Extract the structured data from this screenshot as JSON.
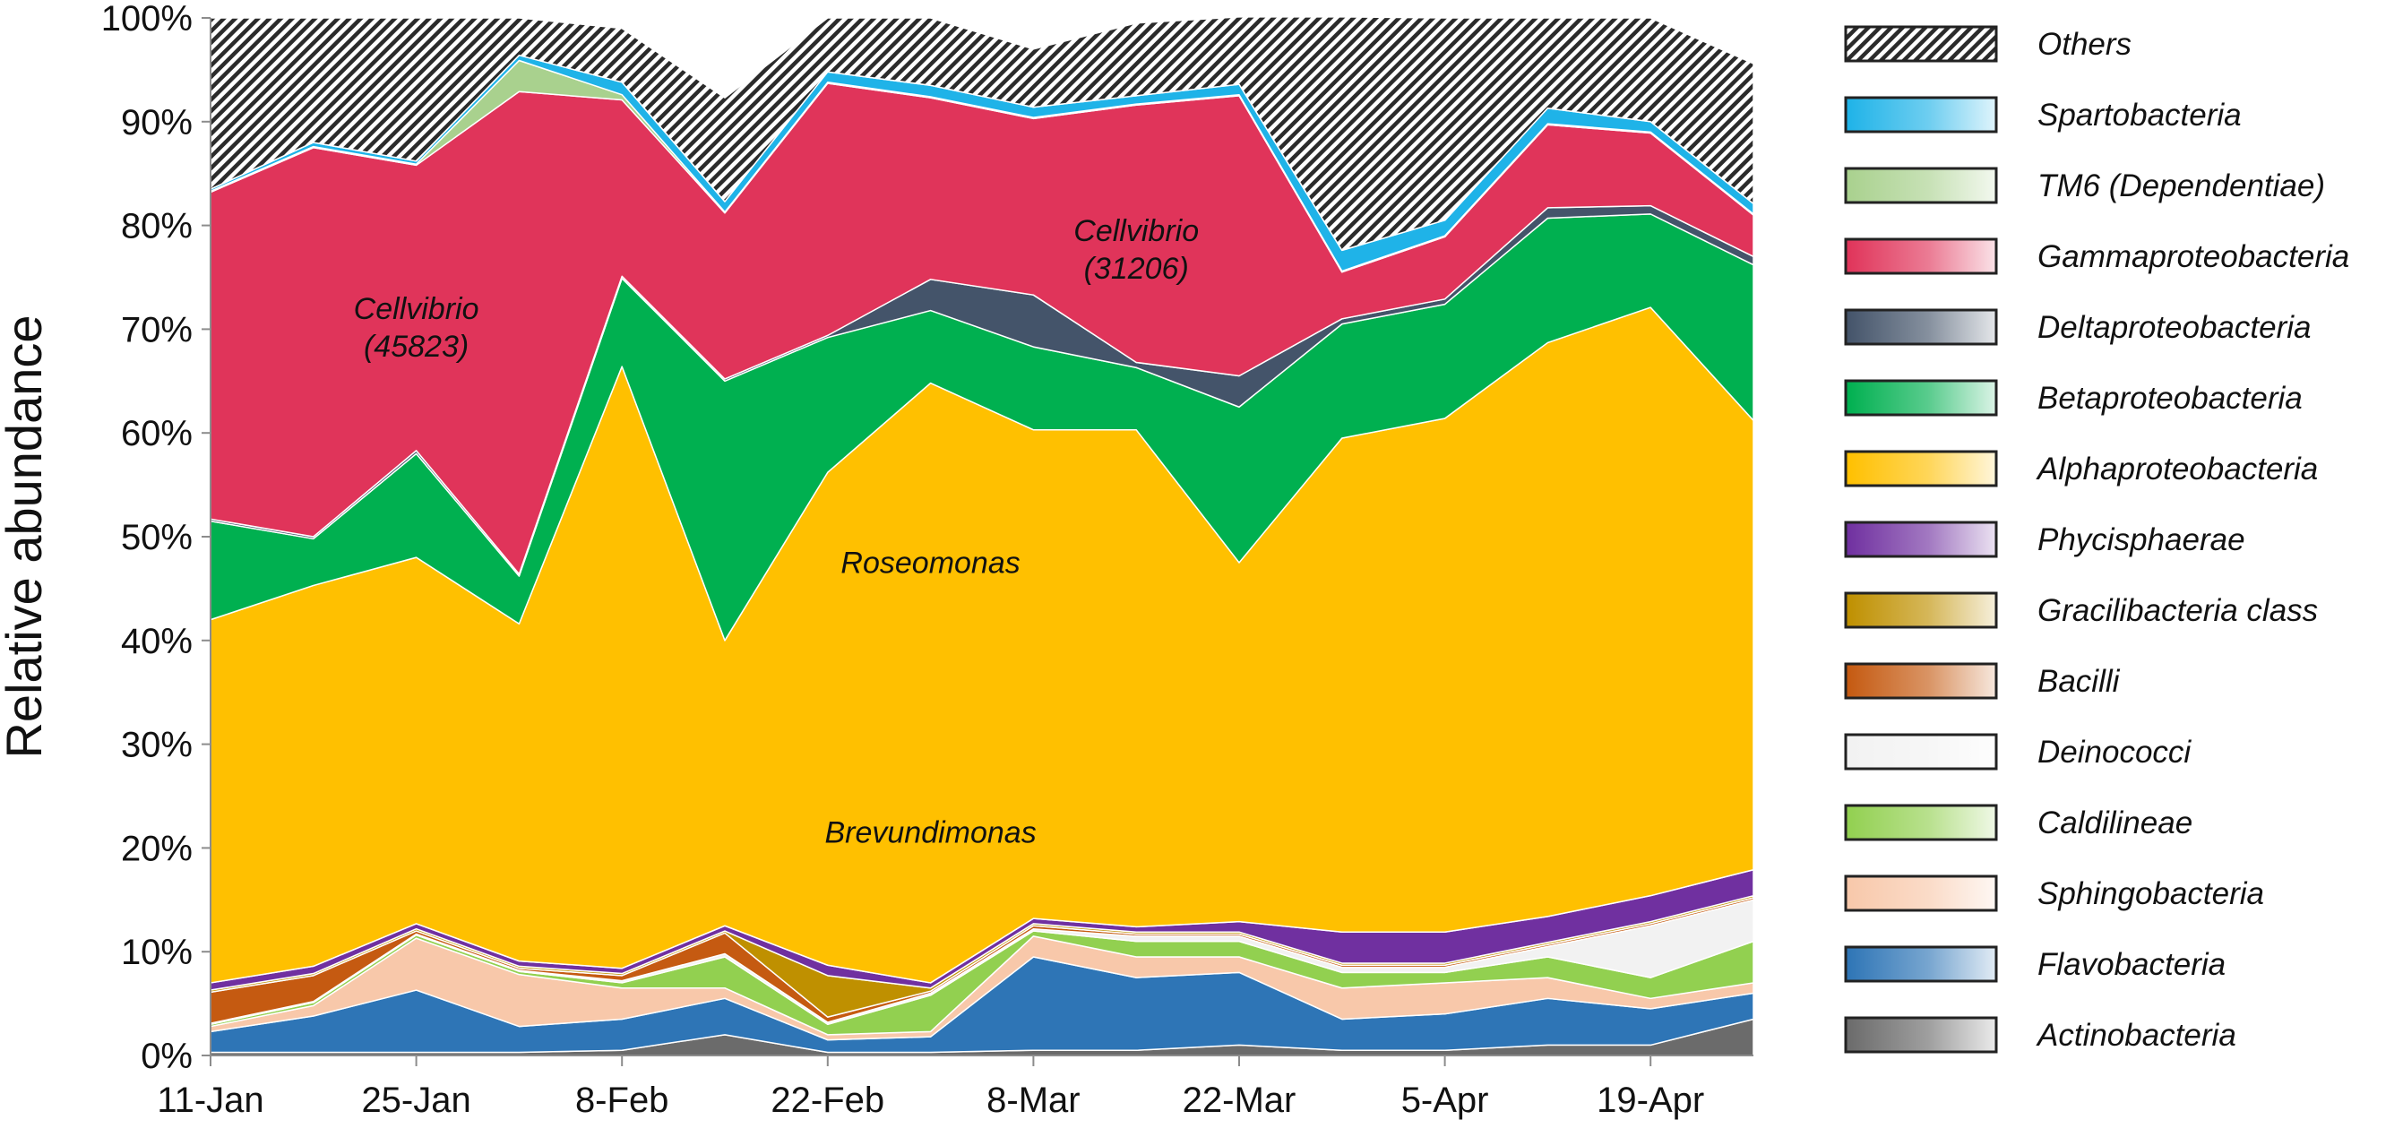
{
  "chart_data": {
    "type": "area",
    "stacked": true,
    "ylabel": "Relative abundance",
    "xlabel": "",
    "ylim": [
      0,
      100
    ],
    "yticks": [
      "0%",
      "10%",
      "20%",
      "30%",
      "40%",
      "50%",
      "60%",
      "70%",
      "80%",
      "90%",
      "100%"
    ],
    "xticks": [
      "11-Jan",
      "25-Jan",
      "8-Feb",
      "22-Feb",
      "8-Mar",
      "22-Mar",
      "5-Apr",
      "19-Apr"
    ],
    "x": [
      "11-Jan",
      "18-Jan",
      "25-Jan",
      "1-Feb",
      "8-Feb",
      "15-Feb",
      "22-Feb",
      "1-Mar",
      "8-Mar",
      "15-Mar",
      "22-Mar",
      "29-Mar",
      "5-Apr",
      "12-Apr",
      "19-Apr",
      "26-Apr"
    ],
    "legend_position": "right",
    "series": [
      {
        "name": "Actinobacteria",
        "color": "#6b6b6b",
        "values": [
          0.3,
          0.3,
          0.3,
          0.3,
          0.5,
          2.0,
          0.3,
          0.3,
          0.5,
          0.5,
          1.0,
          0.5,
          0.5,
          1.0,
          1.0,
          3.5
        ]
      },
      {
        "name": "Flavobacteria",
        "color": "#2e75b6",
        "values": [
          2.0,
          3.5,
          6.0,
          2.5,
          3.0,
          3.5,
          1.2,
          1.5,
          9.0,
          7.0,
          7.0,
          3.0,
          3.5,
          4.5,
          3.5,
          2.5
        ]
      },
      {
        "name": "Sphingobacteria",
        "color": "#f8c8aa",
        "values": [
          0.5,
          1.0,
          5.0,
          5.0,
          3.0,
          1.0,
          0.5,
          0.5,
          2.0,
          2.0,
          1.5,
          3.0,
          3.0,
          2.0,
          1.0,
          1.0
        ]
      },
      {
        "name": "Caldilineae",
        "color": "#92d050",
        "values": [
          0.2,
          0.3,
          0.3,
          0.3,
          0.5,
          3.0,
          1.0,
          3.5,
          0.5,
          1.5,
          1.5,
          1.5,
          1.0,
          2.0,
          2.0,
          4.0
        ]
      },
      {
        "name": "Deinococci",
        "color": "#f2f2f2",
        "values": [
          0.1,
          0.1,
          0.1,
          0.1,
          0.2,
          0.3,
          0.2,
          0.2,
          0.2,
          0.5,
          0.5,
          0.5,
          0.5,
          1.0,
          5.0,
          4.0
        ]
      },
      {
        "name": "Bacilli",
        "color": "#c55a11",
        "values": [
          3.0,
          2.5,
          0.3,
          0.2,
          0.5,
          2.0,
          0.5,
          0.2,
          0.3,
          0.2,
          0.2,
          0.2,
          0.2,
          0.2,
          0.2,
          0.2
        ]
      },
      {
        "name": "Gracilibacteria class",
        "color": "#bf9000",
        "values": [
          0.2,
          0.2,
          0.2,
          0.2,
          0.2,
          0.2,
          4.0,
          0.3,
          0.2,
          0.2,
          0.2,
          0.2,
          0.2,
          0.2,
          0.2,
          0.2
        ]
      },
      {
        "name": "Phycisphaerae",
        "color": "#7030a0",
        "values": [
          0.7,
          0.7,
          0.5,
          0.5,
          0.5,
          0.5,
          1.0,
          0.5,
          0.5,
          0.5,
          1.0,
          3.0,
          3.0,
          2.5,
          2.5,
          2.5
        ]
      },
      {
        "name": "Alphaproteobacteria",
        "color": "#ffc000",
        "values": [
          35.0,
          36.7,
          35.3,
          32.5,
          58.0,
          27.5,
          47.5,
          57.8,
          47.1,
          47.9,
          34.6,
          47.6,
          49.5,
          55.3,
          56.7,
          43.3
        ]
      },
      {
        "name": "Betaproteobacteria",
        "color": "#00b050",
        "values": [
          9.5,
          4.5,
          10.0,
          4.6,
          8.5,
          25.0,
          13.0,
          7.0,
          8.0,
          6.0,
          15.0,
          11.0,
          11.0,
          12.0,
          9.0,
          15.0
        ]
      },
      {
        "name": "Deltaproteobacteria",
        "color": "#44546a",
        "values": [
          0.2,
          0.2,
          0.3,
          0.2,
          0.2,
          0.2,
          0.2,
          3.0,
          5.0,
          0.5,
          3.0,
          0.5,
          0.5,
          1.0,
          0.8,
          0.8
        ]
      },
      {
        "name": "Gammaproteobacteria",
        "color": "#e0345a",
        "values": [
          31.5,
          37.5,
          27.5,
          46.5,
          17.0,
          16.0,
          24.3,
          17.5,
          17.0,
          24.8,
          27.0,
          4.5,
          6.0,
          8.0,
          7.0,
          4.0
        ]
      },
      {
        "name": "TM6 (Dependentiae)",
        "color": "#a9d18e",
        "values": [
          0.1,
          0.1,
          0.1,
          3.0,
          0.5,
          0.1,
          0.1,
          0.1,
          0.1,
          0.1,
          0.1,
          0.1,
          0.1,
          0.1,
          0.1,
          0.1
        ]
      },
      {
        "name": "Spartobacteria",
        "color": "#1fb3e8",
        "values": [
          0.2,
          0.4,
          0.3,
          0.5,
          1.2,
          1.0,
          1.0,
          1.1,
          1.0,
          0.8,
          1.0,
          2.0,
          1.5,
          1.5,
          1.0,
          1.0
        ]
      },
      {
        "name": "Others",
        "color": "hatch",
        "values": [
          16.5,
          12.0,
          13.8,
          3.6,
          5.2,
          10.0,
          5.2,
          6.5,
          5.6,
          7.0,
          6.5,
          22.5,
          19.5,
          8.7,
          10.0,
          13.5
        ]
      }
    ],
    "legend_order": [
      "Others",
      "Spartobacteria",
      "TM6 (Dependentiae)",
      "Gammaproteobacteria",
      "Deltaproteobacteria",
      "Betaproteobacteria",
      "Alphaproteobacteria",
      "Phycisphaerae",
      "Gracilibacteria class",
      "Bacilli",
      "Deinococci",
      "Caldilineae",
      "Sphingobacteria",
      "Flavobacteria",
      "Actinobacteria"
    ],
    "annotations": [
      {
        "lines": [
          "Cellvibrio",
          "(45823)"
        ],
        "x": "25-Jan",
        "y": 71
      },
      {
        "lines": [
          "Cellvibrio",
          "(31206)"
        ],
        "x": "15-Mar",
        "y": 78.5
      },
      {
        "lines": [
          "Roseomonas"
        ],
        "x": "1-Mar",
        "y": 46.5
      },
      {
        "lines": [
          "Brevundimonas"
        ],
        "x": "1-Mar",
        "y": 20.5
      }
    ]
  }
}
